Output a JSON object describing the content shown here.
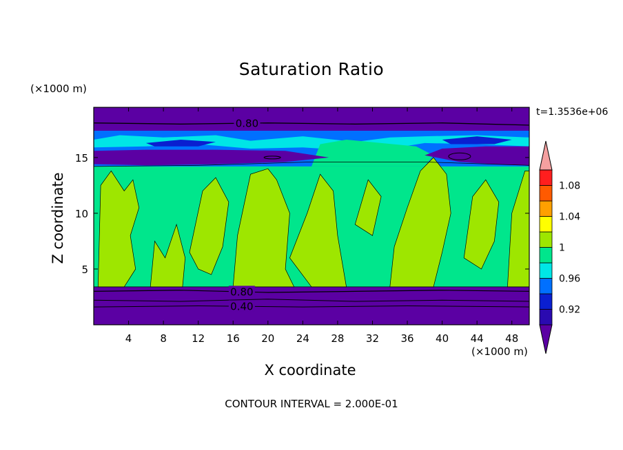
{
  "chart_data": {
    "type": "heatmap",
    "title": "Saturation Ratio",
    "xlabel": "X coordinate",
    "ylabel": "Z coordinate",
    "x_unit": "(×1000 m)",
    "y_unit": "(×1000 m)",
    "time_label": "t=1.3536e+06",
    "footer": "CONTOUR INTERVAL = 2.000E-01",
    "xlim": [
      0,
      50
    ],
    "ylim": [
      0,
      19.5
    ],
    "x_ticks": [
      4,
      8,
      12,
      16,
      20,
      24,
      28,
      32,
      36,
      40,
      44,
      48
    ],
    "y_ticks": [
      5,
      10,
      15
    ],
    "contour_labels": [
      {
        "text": "0.80",
        "x": 17.6,
        "z": 18.1
      },
      {
        "text": "0.80",
        "x": 17.0,
        "z": 3.0
      },
      {
        "text": "0.40",
        "x": 17.0,
        "z": 1.7
      }
    ],
    "colorbar": {
      "labels": [
        "0.92",
        "0.96",
        "1",
        "1.04",
        "1.08"
      ],
      "levels": [
        0.9,
        0.92,
        0.94,
        0.96,
        0.98,
        1.0,
        1.02,
        1.04,
        1.06,
        1.08,
        1.1
      ],
      "colors": [
        "#5b00a3",
        "#2a0ab0",
        "#0a1fd0",
        "#0070ff",
        "#00e6e6",
        "#00e68c",
        "#9ee600",
        "#ffff00",
        "#ffa000",
        "#ff5a00",
        "#ff1e1e",
        "#f5a0a0"
      ],
      "extend": "both"
    },
    "bands": [
      {
        "z_from": 0.0,
        "z_to": 3.4,
        "level": "<0.90"
      },
      {
        "z_from": 3.4,
        "z_to": 14.2,
        "level": "0.98-1.02"
      },
      {
        "z_from": 14.2,
        "z_to": 15.6,
        "level": "<0.90"
      },
      {
        "z_from": 15.6,
        "z_to": 17.4,
        "level": "0.92-0.98"
      },
      {
        "z_from": 17.4,
        "z_to": 19.5,
        "level": "<0.90"
      }
    ]
  }
}
